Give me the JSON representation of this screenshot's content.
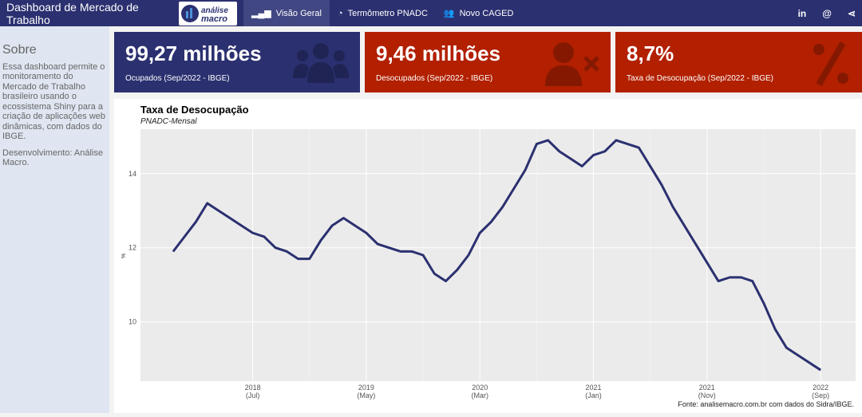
{
  "nav": {
    "title": "Dashboard de Mercado de Trabalho",
    "logo_text": "análise macro",
    "tabs": [
      {
        "label": "Visão Geral",
        "icon": "bar-signal-icon"
      },
      {
        "label": "Termômetro PNADC",
        "icon": "gauge-icon"
      },
      {
        "label": "Novo CAGED",
        "icon": "users-icon"
      }
    ],
    "social": [
      "in",
      "@",
      "share"
    ]
  },
  "sidebar": {
    "heading": "Sobre",
    "text": "Essa dashboard permite o monitoramento do Mercado de Trabalho brasileiro usando o ecossistema Shiny para a criação de aplicações web dinâmicas, com dados do IBGE.",
    "dev": "Desenvolvimento: Análise Macro."
  },
  "cards": [
    {
      "value": "99,27 milhões",
      "label": "Ocupados (Sep/2022 - IBGE)",
      "color": "#2b3070",
      "icon": "users-icon"
    },
    {
      "value": "9,46 milhões",
      "label": "Desocupados (Sep/2022 - IBGE)",
      "color": "#b22000",
      "icon": "user-times-icon"
    },
    {
      "value": "8,7%",
      "label": "Taxa de Desocupação (Sep/2022 - IBGE)",
      "color": "#b22000",
      "icon": "percent-icon"
    }
  ],
  "chart_data": {
    "type": "line",
    "title": "Taxa de Desocupação",
    "subtitle": "PNADC-Mensal",
    "ylabel": "%",
    "caption": "Fonte: analisemacro.com.br com dados do Sidra/IBGE.",
    "ylim": [
      8.4,
      15.2
    ],
    "yticks": [
      10,
      12,
      14
    ],
    "x_start": "2017-12",
    "x_end": "2022-09",
    "grid": true,
    "color": "#2b3070",
    "xticks": [
      {
        "date": "2018-07",
        "label": "2018",
        "sub": "(Jul)"
      },
      {
        "date": "2019-05",
        "label": "2019",
        "sub": "(May)"
      },
      {
        "date": "2020-03",
        "label": "2020",
        "sub": "(Mar)"
      },
      {
        "date": "2021-01",
        "label": "2021",
        "sub": "(Jan)"
      },
      {
        "date": "2021-11",
        "label": "2021",
        "sub": "(Nov)"
      },
      {
        "date": "2022-09",
        "label": "2022",
        "sub": "(Sep)"
      }
    ],
    "values": [
      11.9,
      12.3,
      12.7,
      13.2,
      13.0,
      12.8,
      12.6,
      12.4,
      12.3,
      12.0,
      11.9,
      11.7,
      11.7,
      12.2,
      12.6,
      12.8,
      12.6,
      12.4,
      12.1,
      12.0,
      11.9,
      11.9,
      11.8,
      11.3,
      11.1,
      11.4,
      11.8,
      12.4,
      12.7,
      13.1,
      13.6,
      14.1,
      14.8,
      14.9,
      14.6,
      14.4,
      14.2,
      14.5,
      14.6,
      14.9,
      14.8,
      14.7,
      14.2,
      13.7,
      13.1,
      12.6,
      12.1,
      11.6,
      11.1,
      11.2,
      11.2,
      11.1,
      10.5,
      9.8,
      9.3,
      9.1,
      8.9,
      8.7
    ]
  }
}
